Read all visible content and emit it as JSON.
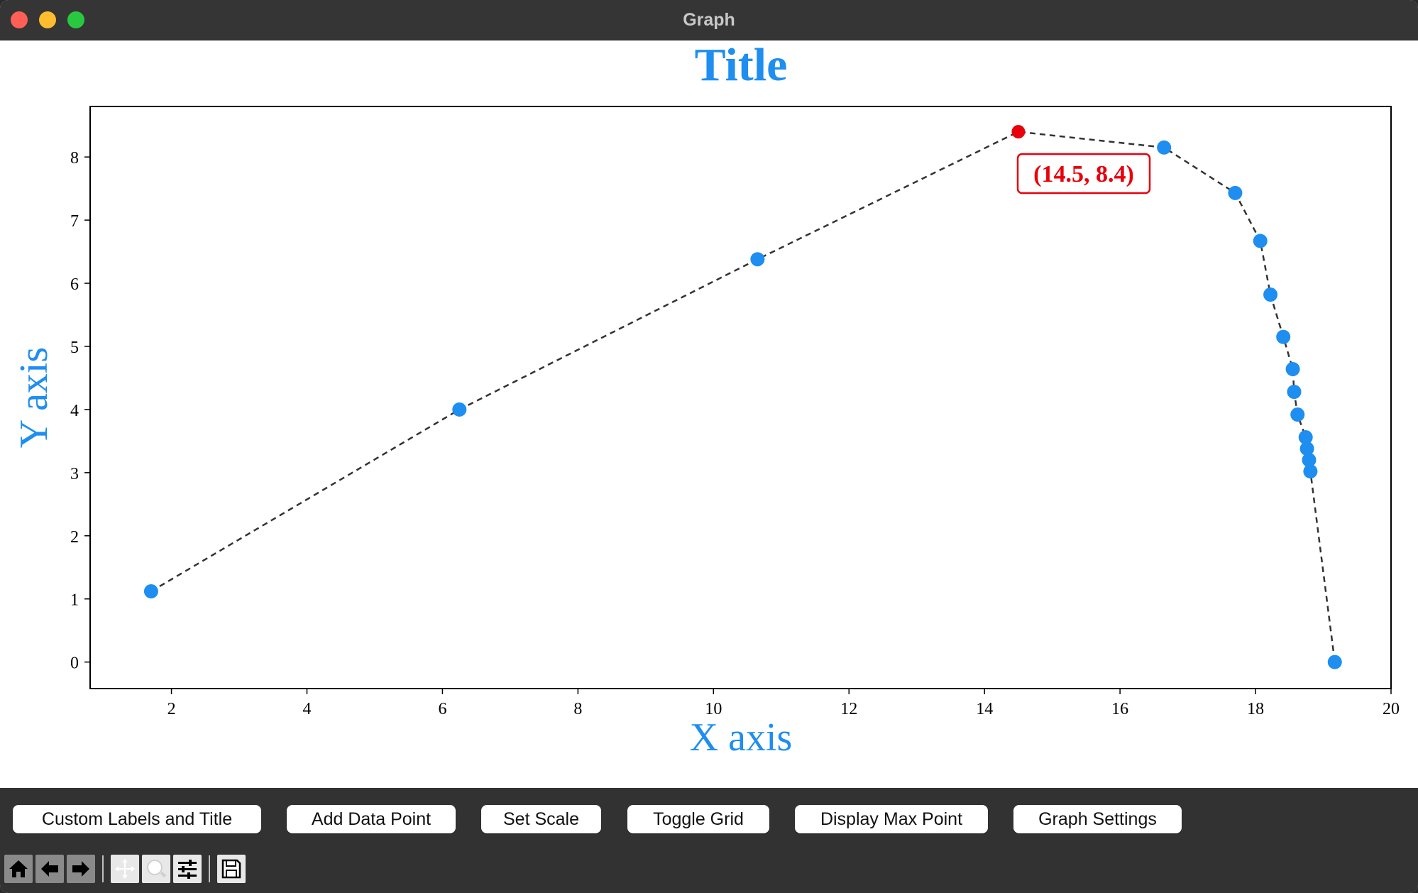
{
  "window": {
    "title": "Graph"
  },
  "buttons": {
    "custom_labels": "Custom Labels and Title",
    "add_point": "Add Data Point",
    "set_scale": "Set Scale",
    "toggle_grid": "Toggle Grid",
    "display_max": "Display Max Point",
    "graph_settings": "Graph Settings"
  },
  "toolbar": {
    "icons": [
      "home-icon",
      "back-arrow-icon",
      "forward-arrow-icon",
      "pan-icon",
      "zoom-icon",
      "configure-subplots-icon",
      "save-icon"
    ]
  },
  "chart_data": {
    "type": "line",
    "title": "Title",
    "xlabel": "X axis",
    "ylabel": "Y axis",
    "xlim": [
      0.8,
      20
    ],
    "ylim": [
      -0.42,
      8.8
    ],
    "xticks": [
      "2",
      "4",
      "6",
      "8",
      "10",
      "12",
      "14",
      "16",
      "18",
      "20"
    ],
    "yticks": [
      "0",
      "1",
      "2",
      "3",
      "4",
      "5",
      "6",
      "7",
      "8"
    ],
    "grid": false,
    "line_style": "dashed",
    "line_color": "#333333",
    "marker_color": "#1e8ef0",
    "label_color": "#1e8ef0",
    "points": [
      {
        "x": 1.7,
        "y": 1.12
      },
      {
        "x": 6.25,
        "y": 4.0
      },
      {
        "x": 10.65,
        "y": 6.38
      },
      {
        "x": 14.5,
        "y": 8.4
      },
      {
        "x": 16.65,
        "y": 8.15
      },
      {
        "x": 17.7,
        "y": 7.43
      },
      {
        "x": 18.07,
        "y": 6.67
      },
      {
        "x": 18.22,
        "y": 5.82
      },
      {
        "x": 18.41,
        "y": 5.15
      },
      {
        "x": 18.55,
        "y": 4.64
      },
      {
        "x": 18.57,
        "y": 4.28
      },
      {
        "x": 18.62,
        "y": 3.92
      },
      {
        "x": 18.74,
        "y": 3.56
      },
      {
        "x": 18.76,
        "y": 3.38
      },
      {
        "x": 18.79,
        "y": 3.2
      },
      {
        "x": 18.81,
        "y": 3.02
      },
      {
        "x": 19.17,
        "y": 0.0
      }
    ],
    "max_point": {
      "x": 14.5,
      "y": 8.4,
      "label": "(14.5, 8.4)",
      "color": "#e8000b"
    }
  }
}
